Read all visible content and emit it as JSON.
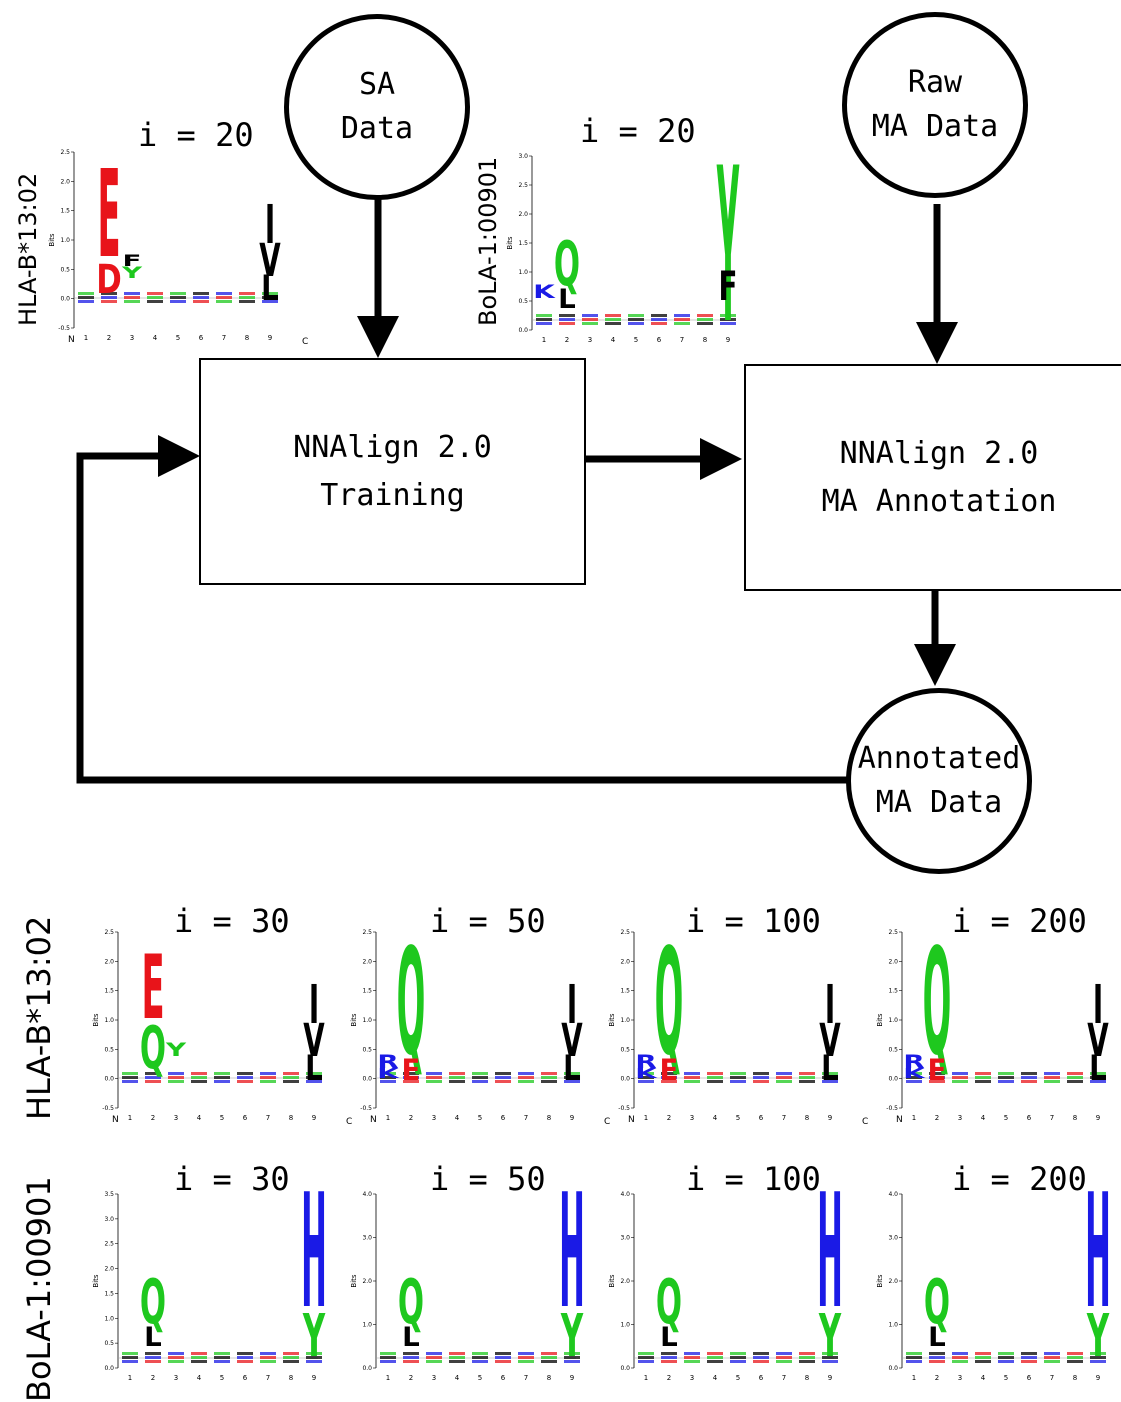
{
  "nodes": {
    "sa_data": [
      "SA",
      "Data"
    ],
    "raw_ma_data": [
      "Raw",
      "MA Data"
    ],
    "annotated_ma_data": [
      "Annotated",
      "MA Data"
    ],
    "training": [
      "NNAlign 2.0",
      "Training"
    ],
    "annotation": [
      "NNAlign 2.0",
      "MA Annotation"
    ]
  },
  "row_labels": {
    "hla": "HLA-B*13:02",
    "bola": "BoLA-1:00901"
  },
  "axis": {
    "bits_label": "Bits",
    "n_terminus": "N",
    "c_terminus": "C",
    "positions": [
      "1",
      "2",
      "3",
      "4",
      "5",
      "6",
      "7",
      "8",
      "9"
    ]
  },
  "colors": {
    "acidic": "#e8141a",
    "polar": "#1ec81e",
    "basic": "#1a1ae6",
    "hydrophobic": "#000000"
  },
  "logos": {
    "top_hla": {
      "iteration": "i = 20",
      "ymax": 2.5,
      "ticks": [
        "2.5",
        "2.0",
        "1.5",
        "1.0",
        "0.5",
        "0.0",
        "-0.5"
      ]
    },
    "top_bola": {
      "iteration": "i = 20",
      "ymax": 3.0,
      "ticks": [
        "3.0",
        "2.5",
        "2.0",
        "1.5",
        "1.0",
        "0.5",
        "0.0"
      ]
    },
    "hla": [
      {
        "iteration": "i = 30",
        "ticks": [
          "2.5",
          "2.0",
          "1.5",
          "1.0",
          "0.5",
          "0.0",
          "-0.5"
        ]
      },
      {
        "iteration": "i = 50",
        "ticks": [
          "2.5",
          "2.0",
          "1.5",
          "1.0",
          "0.5",
          "0.0",
          "-0.5"
        ]
      },
      {
        "iteration": "i = 100",
        "ticks": [
          "2.5",
          "2.0",
          "1.5",
          "1.0",
          "0.5",
          "0.0",
          "-0.5"
        ]
      },
      {
        "iteration": "i = 200",
        "ticks": [
          "2.5",
          "2.0",
          "1.5",
          "1.0",
          "0.5",
          "0.0",
          "-0.5"
        ]
      }
    ],
    "bola": [
      {
        "iteration": "i = 30",
        "ticks": [
          "3.5",
          "3.0",
          "2.5",
          "2.0",
          "1.5",
          "1.0",
          "0.5",
          "0.0"
        ]
      },
      {
        "iteration": "i = 50",
        "ticks": [
          "4.0",
          "3.0",
          "2.0",
          "1.0",
          "0.0"
        ]
      },
      {
        "iteration": "i = 100",
        "ticks": [
          "4.0",
          "3.0",
          "2.0",
          "1.0",
          "0.0"
        ]
      },
      {
        "iteration": "i = 200",
        "ticks": [
          "4.0",
          "3.0",
          "2.0",
          "1.0",
          "0.0"
        ]
      }
    ]
  }
}
